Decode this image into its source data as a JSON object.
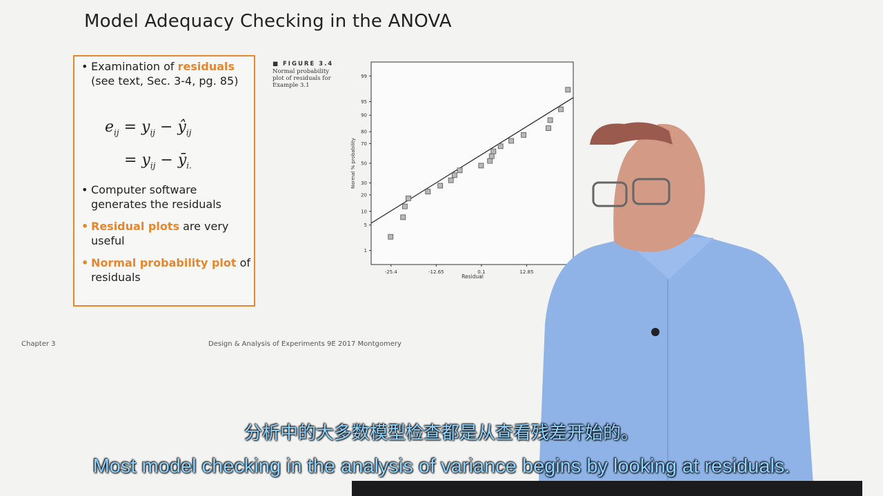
{
  "slide": {
    "title": "Model Adequacy Checking in the ANOVA",
    "bullets": {
      "b1_pre": "Examination of ",
      "b1_accent": "residuals",
      "b1_line2": "(see text, Sec. 3-4, pg. 85)",
      "b2": "Computer software generates the residuals",
      "b3_accent": "Residual plots",
      "b3_rest": " are very useful",
      "b4_accent": "Normal probability plot",
      "b4_rest": " of residuals"
    },
    "equation": {
      "lhs": "e",
      "line1_rhs": "= y",
      "line1_minus": " − ŷ",
      "line2_rhs": "= y",
      "line2_minus": " − ȳ",
      "sub_ij": "ij",
      "sub_i": "i."
    },
    "figure_caption": {
      "head": "FIGURE 3.4",
      "text": "Normal probability plot of residuals for Example 3.1"
    },
    "footer_left": "Chapter 3",
    "footer_center": "Design & Analysis of Experiments 9E 2017 Montgomery"
  },
  "subtitles": {
    "chinese": "分析中的大多数模型检查都是从查看残差开始的。",
    "english": "Most model checking in the analysis of variance begins by looking at residuals."
  },
  "chart_data": {
    "type": "scatter",
    "xlabel": "Residual",
    "ylabel": "Normal % probability",
    "x_ticks": [
      "-25.4",
      "-12.65",
      "0.1",
      "12.85"
    ],
    "y_ticks": [
      "1",
      "5",
      "10",
      "20",
      "30",
      "50",
      "70",
      "80",
      "90",
      "95",
      "99"
    ],
    "xlim": [
      -31,
      26
    ],
    "ylim_probit": [
      -2.7,
      2.7
    ],
    "points": [
      {
        "x": -25.5,
        "y": 2.5
      },
      {
        "x": -22.0,
        "y": 7.5
      },
      {
        "x": -21.5,
        "y": 12.5
      },
      {
        "x": -20.5,
        "y": 17.5
      },
      {
        "x": -15.0,
        "y": 22.5
      },
      {
        "x": -11.5,
        "y": 27.5
      },
      {
        "x": -8.5,
        "y": 32.5
      },
      {
        "x": -7.5,
        "y": 37.5
      },
      {
        "x": -6.0,
        "y": 42.5
      },
      {
        "x": 0.0,
        "y": 47.5
      },
      {
        "x": 2.5,
        "y": 52.5
      },
      {
        "x": 3.0,
        "y": 57.5
      },
      {
        "x": 3.5,
        "y": 62.5
      },
      {
        "x": 5.5,
        "y": 67.5
      },
      {
        "x": 8.5,
        "y": 72.5
      },
      {
        "x": 12.0,
        "y": 77.5
      },
      {
        "x": 19.0,
        "y": 82.5
      },
      {
        "x": 19.5,
        "y": 87.5
      },
      {
        "x": 22.5,
        "y": 92.5
      },
      {
        "x": 24.5,
        "y": 97.5
      }
    ],
    "fit_line": {
      "x": [
        -31,
        26
      ],
      "y": [
        5.5,
        96
      ]
    }
  }
}
